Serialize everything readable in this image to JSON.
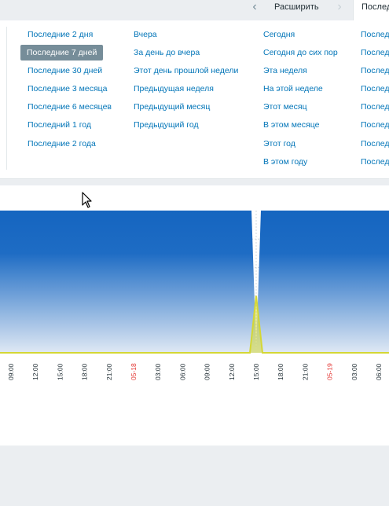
{
  "navigation": {
    "prev_icon": "chevron-left-icon",
    "zoom_out_label": "Расширить",
    "next_icon": "chevron-right-icon",
    "active_tab_label": "Последние 7 дней"
  },
  "quick_ranges": {
    "column_1": [
      "Последние 2 дня",
      "Последние 7 дней",
      "Последние 30 дней",
      "Последние 3 месяца",
      "Последние 6 месяцев",
      "Последний 1 год",
      "Последние 2 года"
    ],
    "column_2": [
      "Вчера",
      "За день до вчера",
      "Этот день прошлой недели",
      "Предыдущая неделя",
      "Предыдущий месяц",
      "Предыдущий год"
    ],
    "column_3": [
      "Сегодня",
      "Сегодня до сих пор",
      "Эта неделя",
      "На этой неделе",
      "Этот месяц",
      "В этом месяце",
      "Этот год",
      "В этом году"
    ],
    "column_4": [
      "Послед",
      "Послед",
      "Послед",
      "Послед",
      "Послед",
      "Послед",
      "Послед",
      "Послед"
    ],
    "selected": "Последние 7 дней"
  },
  "chart_data": {
    "type": "area",
    "x_ticks": [
      "09:00",
      "12:00",
      "15:00",
      "18:00",
      "21:00",
      "05-18",
      "03:00",
      "06:00",
      "09:00",
      "12:00",
      "15:00",
      "18:00",
      "21:00",
      "05-19",
      "03:00",
      "06:00"
    ],
    "date_ticks": [
      "05-18",
      "05-19"
    ],
    "series": [
      {
        "color": "#1565c0",
        "values": [
          100,
          100,
          100,
          100,
          100,
          100,
          100,
          100,
          100,
          100,
          2,
          100,
          100,
          100,
          100,
          100
        ]
      },
      {
        "color": "#d4d735",
        "values": [
          0,
          0,
          0,
          0,
          0,
          0,
          0,
          0,
          0,
          0,
          40,
          0,
          0,
          0,
          0,
          0
        ]
      }
    ],
    "grid": true,
    "colors": {
      "accent": "#0275b8",
      "area": "#1565c0",
      "spike": "#d4d735",
      "date": "#e33734"
    }
  }
}
